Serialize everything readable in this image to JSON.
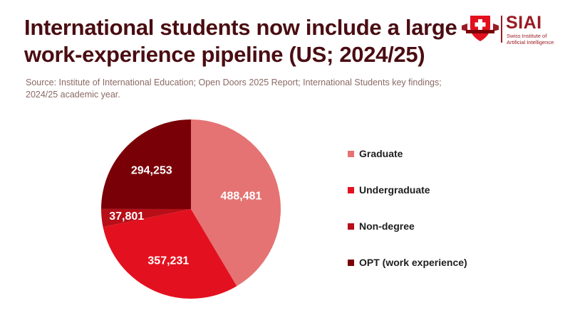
{
  "header": {
    "title_line1": "International students now include a large",
    "title_line2": "work-experience pipeline (US; 2024/25)",
    "source_line1": "Source: Institute of International Education; Open Doors 2025 Report; International Students key findings;",
    "source_line2": "2024/25 academic year."
  },
  "logo": {
    "name": "SIAI",
    "sub_line1": "Swiss Institute of",
    "sub_line2": "Artificial Intelligence",
    "badge_icon": "swiss-cross-shield-icon",
    "brand_color": "#9a1b24"
  },
  "chart_data": {
    "type": "pie",
    "start_angle_deg": 0,
    "direction": "clockwise",
    "slices": [
      {
        "label": "Graduate",
        "value": 488481,
        "display": "488,481",
        "color": "#e57373"
      },
      {
        "label": "Undergraduate",
        "value": 357231,
        "display": "357,231",
        "color": "#e3111f"
      },
      {
        "label": "Non-degree",
        "value": 37801,
        "display": "37,801",
        "color": "#b70e17"
      },
      {
        "label": "OPT (work experience)",
        "value": 294253,
        "display": "294,253",
        "color": "#7a0007"
      }
    ],
    "legend_position": "right"
  }
}
